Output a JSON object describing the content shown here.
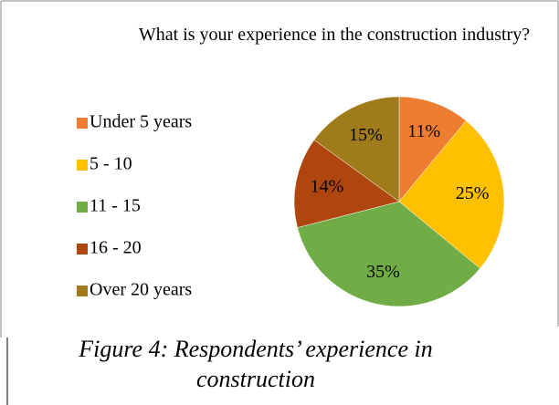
{
  "chart_data": {
    "type": "pie",
    "title": "What is your experience in the construction industry?",
    "categories": [
      "Under 5 years",
      "5 - 10",
      "11 - 15",
      "16 - 20",
      "Over 20 years"
    ],
    "values": [
      11,
      25,
      35,
      14,
      15
    ],
    "value_labels": [
      "11%",
      "25%",
      "35%",
      "14%",
      "15%"
    ],
    "colors": [
      "#ED7D31",
      "#FFC000",
      "#70AD47",
      "#B0460F",
      "#A07B1C"
    ],
    "legend": "left"
  },
  "caption": "Figure 4: Respondents’ experience in construction"
}
